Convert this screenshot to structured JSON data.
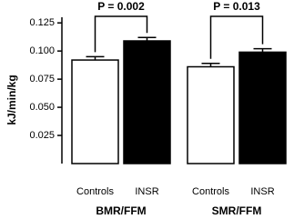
{
  "chart_data": {
    "type": "bar",
    "y_label": "kJ/min/kg",
    "categories": [
      "BMR/FFM",
      "SMR/FFM"
    ],
    "series": [
      {
        "name": "Controls",
        "color": "#ffffff",
        "values": [
          0.092,
          0.086
        ],
        "errors": [
          0.003,
          0.003
        ]
      },
      {
        "name": "INSR",
        "color": "#000000",
        "values": [
          0.109,
          0.099
        ],
        "errors": [
          0.003,
          0.003
        ]
      }
    ],
    "ylim": [
      0,
      0.13
    ],
    "yticks": [
      0.025,
      {
        "value": 0.05,
        "label": "0.050"
      },
      0.075,
      {
        "value": 0.1,
        "label": "0.100"
      },
      0.125
    ],
    "annotations": [
      {
        "text": "P = 0.002"
      },
      {
        "text": "P = 0.013"
      }
    ]
  }
}
